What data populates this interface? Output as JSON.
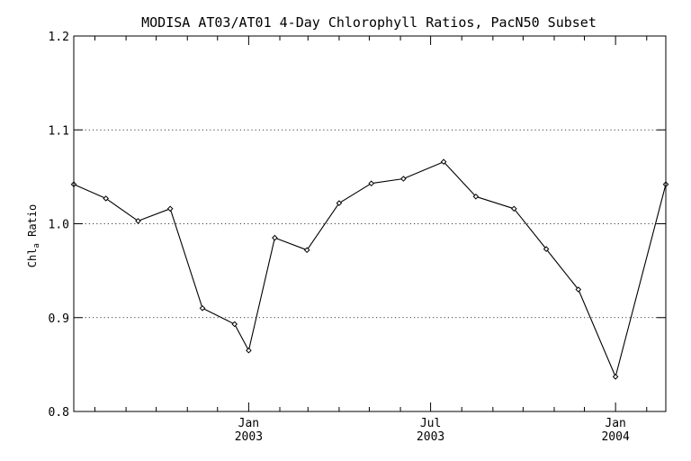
{
  "chart_data": {
    "type": "line",
    "title": "MODISA AT03/AT01 4-Day Chlorophyll Ratios, PacN50 Subset",
    "ylabel": {
      "main": "Chl",
      "subscript": "a",
      "suffix": " Ratio"
    },
    "xlabel": "",
    "ylim": [
      0.8,
      1.2
    ],
    "xlim": [
      "2002-07-11",
      "2004-02-20"
    ],
    "y_ticks": [
      {
        "value": 0.8,
        "label": "0.8"
      },
      {
        "value": 0.9,
        "label": "0.9"
      },
      {
        "value": 1.0,
        "label": "1.0"
      },
      {
        "value": 1.1,
        "label": "1.1"
      },
      {
        "value": 1.2,
        "label": "1.2"
      }
    ],
    "y_gridlines": [
      0.9,
      1.0,
      1.1
    ],
    "x_major_ticks": [
      {
        "date": "2003-01-01",
        "label_month": "Jan",
        "label_year": "2003"
      },
      {
        "date": "2003-07-01",
        "label_month": "Jul",
        "label_year": "2003"
      },
      {
        "date": "2004-01-01",
        "label_month": "Jan",
        "label_year": "2004"
      }
    ],
    "x_minor_ticks": [
      "2002-08-01",
      "2002-09-01",
      "2002-10-01",
      "2002-11-01",
      "2002-12-01",
      "2003-02-01",
      "2003-03-01",
      "2003-04-01",
      "2003-05-01",
      "2003-06-01",
      "2003-08-01",
      "2003-09-01",
      "2003-10-01",
      "2003-11-01",
      "2003-12-01",
      "2004-02-01"
    ],
    "grid": "horizontal-dotted",
    "series": [
      {
        "color": "#000000",
        "marker": "diamond",
        "points": [
          {
            "x": "2002-07-11",
            "y": 1.042
          },
          {
            "x": "2002-08-12",
            "y": 1.027
          },
          {
            "x": "2002-09-13",
            "y": 1.003
          },
          {
            "x": "2002-10-15",
            "y": 1.016
          },
          {
            "x": "2002-11-16",
            "y": 0.91
          },
          {
            "x": "2002-12-18",
            "y": 0.893
          },
          {
            "x": "2003-01-01",
            "y": 0.865
          },
          {
            "x": "2003-01-27",
            "y": 0.985
          },
          {
            "x": "2003-02-28",
            "y": 0.972
          },
          {
            "x": "2003-04-01",
            "y": 1.022
          },
          {
            "x": "2003-05-03",
            "y": 1.043
          },
          {
            "x": "2003-06-04",
            "y": 1.048
          },
          {
            "x": "2003-07-14",
            "y": 1.066
          },
          {
            "x": "2003-08-15",
            "y": 1.029
          },
          {
            "x": "2003-09-22",
            "y": 1.016
          },
          {
            "x": "2003-10-24",
            "y": 0.973
          },
          {
            "x": "2003-11-25",
            "y": 0.93
          },
          {
            "x": "2004-01-01",
            "y": 0.837
          },
          {
            "x": "2004-02-20",
            "y": 1.042
          }
        ]
      }
    ]
  }
}
